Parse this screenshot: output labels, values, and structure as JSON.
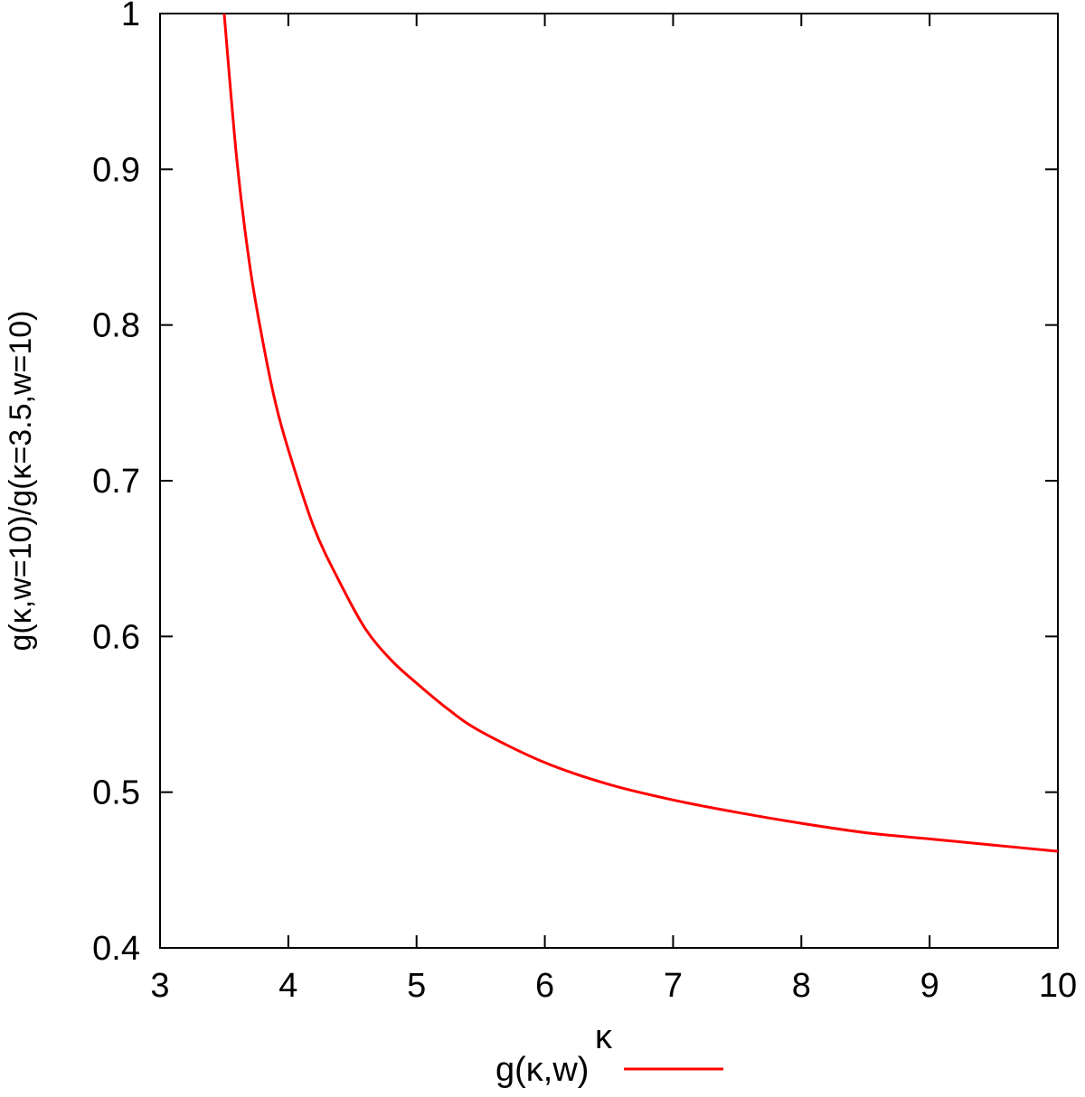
{
  "chart_data": {
    "type": "line",
    "title": "",
    "xlabel": "κ",
    "ylabel": "g(κ,w=10)/g(κ=3.5,w=10)",
    "xlim": [
      3,
      10
    ],
    "ylim": [
      0.4,
      1
    ],
    "x_ticks": [
      3,
      4,
      5,
      6,
      7,
      8,
      9,
      10
    ],
    "y_ticks": [
      0.4,
      0.5,
      0.6,
      0.7,
      0.8,
      0.9,
      1
    ],
    "x_tick_labels": [
      "3",
      "4",
      "5",
      "6",
      "7",
      "8",
      "9",
      "10"
    ],
    "y_tick_labels": [
      "0.4",
      "0.5",
      "0.6",
      "0.7",
      "0.8",
      "0.9",
      "1"
    ],
    "grid": false,
    "legend_position": "bottom",
    "series": [
      {
        "name": "g(κ,w)",
        "color": "#ff0000",
        "x": [
          3.5,
          3.6,
          3.7,
          3.8,
          3.9,
          4.0,
          4.2,
          4.4,
          4.6,
          4.8,
          5.0,
          5.25,
          5.5,
          6.0,
          6.5,
          7.0,
          7.5,
          8.0,
          8.5,
          9.0,
          9.5,
          10.0
        ],
        "y": [
          1.0,
          0.905,
          0.838,
          0.79,
          0.75,
          0.72,
          0.67,
          0.635,
          0.605,
          0.585,
          0.57,
          0.553,
          0.539,
          0.519,
          0.505,
          0.495,
          0.487,
          0.48,
          0.474,
          0.47,
          0.466,
          0.462
        ]
      }
    ]
  }
}
